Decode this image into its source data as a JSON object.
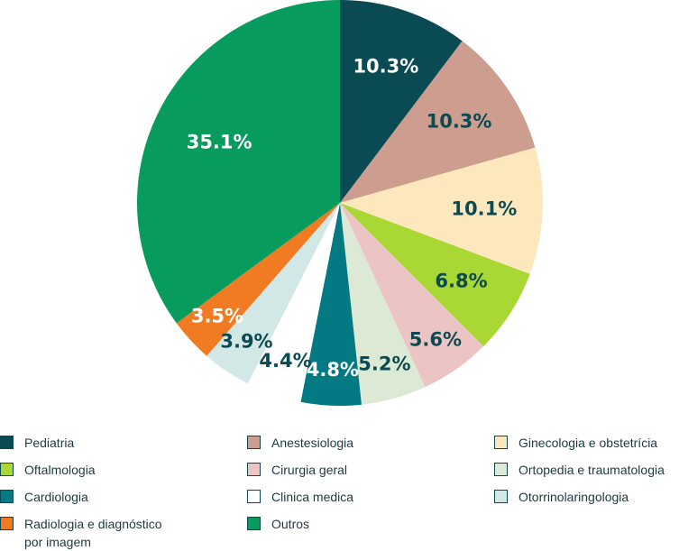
{
  "chart_data": {
    "type": "pie",
    "title": "",
    "slices": [
      {
        "label": "Pediatria",
        "value": 10.3,
        "display": "10.3%",
        "color": "#0a4a53",
        "text_color": "#ffffff"
      },
      {
        "label": "Anestesiologia",
        "value": 10.3,
        "display": "10.3%",
        "color": "#cd9e90",
        "text_color": "#0b4a52"
      },
      {
        "label": "Ginecologia e obstetrícia",
        "value": 10.1,
        "display": "10.1%",
        "color": "#fde7bd",
        "text_color": "#0b4a52"
      },
      {
        "label": "Oftalmologia",
        "value": 6.8,
        "display": "6.8%",
        "color": "#a9d733",
        "text_color": "#0b4a52"
      },
      {
        "label": "Cirurgia geral",
        "value": 5.6,
        "display": "5.6%",
        "color": "#ecc4c3",
        "text_color": "#0b4a52"
      },
      {
        "label": "Ortopedia e traumatologia",
        "value": 5.2,
        "display": "5.2%",
        "color": "#dbe9d5",
        "text_color": "#0b4a52"
      },
      {
        "label": "Cardiologia",
        "value": 4.8,
        "display": "4.8%",
        "color": "#037a83",
        "text_color": "#ffffff"
      },
      {
        "label": "Clinica medica",
        "value": 4.4,
        "display": "4.4%",
        "color": "#ffffff",
        "text_color": "#0b4a52"
      },
      {
        "label": "Otorrinolaringologia",
        "value": 3.9,
        "display": "3.9%",
        "color": "#d1e8e7",
        "text_color": "#0b4a52"
      },
      {
        "label": "Radiologia e diagnóstico\npor imagem",
        "value": 3.5,
        "display": "3.5%",
        "color": "#f07b23",
        "text_color": "#ffffff"
      },
      {
        "label": "Outros",
        "value": 35.1,
        "display": "35.1%",
        "color": "#079b5e",
        "text_color": "#ffffff"
      }
    ],
    "legend_position": "bottom",
    "legend_order": [
      "Pediatria",
      "Anestesiologia",
      "Ginecologia e obstetrícia",
      "Oftalmologia",
      "Cirurgia geral",
      "Ortopedia e traumatologia",
      "Cardiologia",
      "Clinica medica",
      "Otorrinolaringologia",
      "Radiologia e diagnóstico\npor imagem",
      "Outros"
    ]
  }
}
